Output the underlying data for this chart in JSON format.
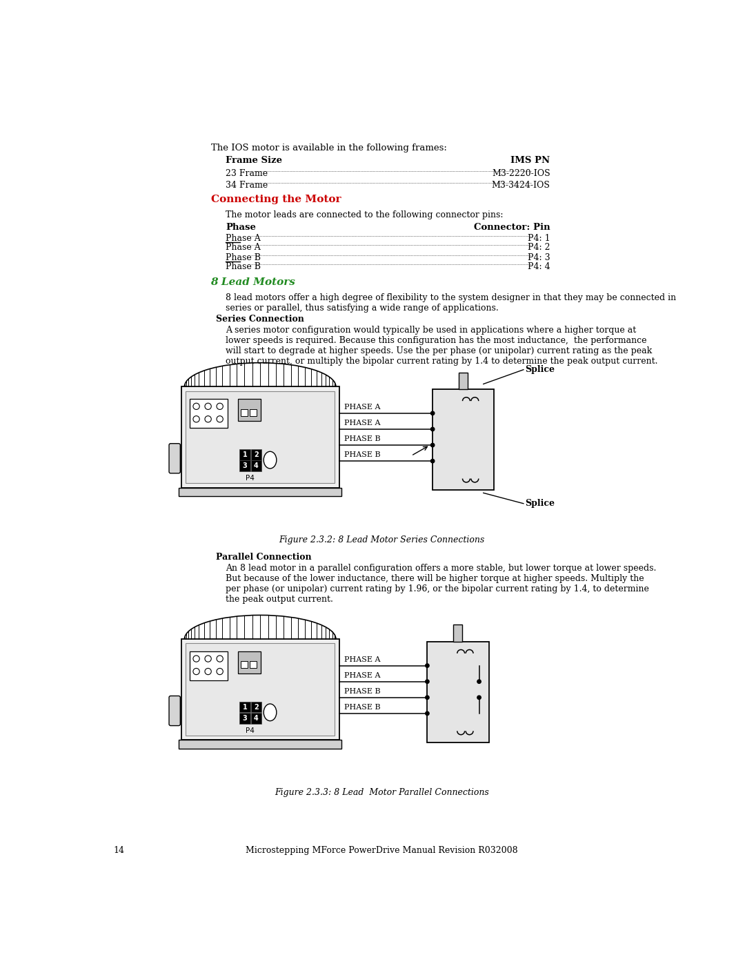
{
  "title_text": "The IOS motor is available in the following frames:",
  "frame_size_header": "Frame Size",
  "ims_pn_header": "IMS PN",
  "frame_rows": [
    [
      "23 Frame",
      "M3-2220-IOS"
    ],
    [
      "34 Frame",
      "M3-3424-IOS"
    ]
  ],
  "section_title": "Connecting the Motor",
  "section_title_color": "#CC0000",
  "connector_intro": "The motor leads are connected to the following connector pins:",
  "phase_header": "Phase",
  "connector_pin_header": "Connector: Pin",
  "phase_rows_left": [
    "Phase A",
    "Phase A",
    "Phase B",
    "Phase B"
  ],
  "phase_rows_right": [
    "P4: 1",
    "P4: 2",
    "P4: 3",
    "P4: 4"
  ],
  "phase_overline": [
    false,
    true,
    false,
    true
  ],
  "lead_motors_title": "8 Lead Motors",
  "lead_motors_color": "#228B22",
  "lead_motors_intro": "8 lead motors offer a high degree of flexibility to the system designer in that they may be connected in\nseries or parallel, thus satisfying a wide range of applications.",
  "series_connection_header": "Series Connection",
  "series_connection_text": "A series motor configuration would typically be used in applications where a higher torque at\nlower speeds is required. Because this configuration has the most inductance,  the performance\nwill start to degrade at higher speeds. Use the per phase (or unipolar) current rating as the peak\noutput current, or multiply the bipolar current rating by 1.4 to determine the peak output current.",
  "figure1_caption": "Figure 2.3.2: 8 Lead Motor Series Connections",
  "parallel_connection_header": "Parallel Connection",
  "parallel_connection_text": "An 8 lead motor in a parallel configuration offers a more stable, but lower torque at lower speeds.\nBut because of the lower inductance, there will be higher torque at higher speeds. Multiply the\nper phase (or unipolar) current rating by 1.96, or the bipolar current rating by 1.4, to determine\nthe peak output current.",
  "figure2_caption": "Figure 2.3.3: 8 Lead  Motor Parallel Connections",
  "page_number": "14",
  "footer_text": "Microstepping MForce PowerDrive Manual Revision R032008",
  "background_color": "#FFFFFF"
}
